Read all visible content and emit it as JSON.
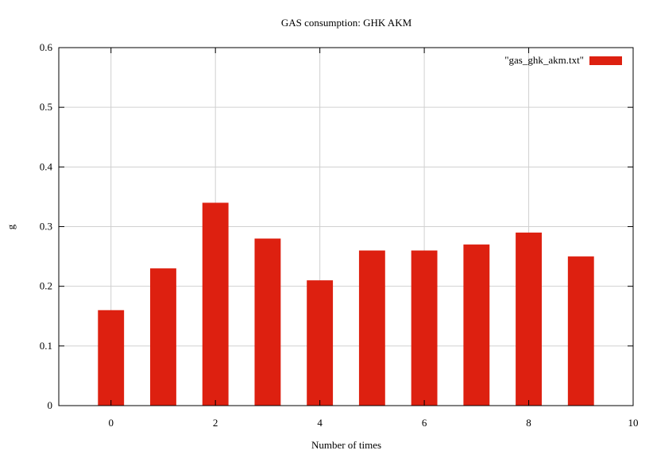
{
  "chart_data": {
    "type": "bar",
    "title": "GAS consumption: GHK AKM",
    "xlabel": "Number of times",
    "ylabel": "g",
    "x": [
      0,
      1,
      2,
      3,
      4,
      5,
      6,
      7,
      8,
      9
    ],
    "values": [
      0.16,
      0.23,
      0.34,
      0.28,
      0.21,
      0.26,
      0.26,
      0.27,
      0.29,
      0.25
    ],
    "series": [
      {
        "name": "\"gas_ghk_akm.txt\"",
        "color": "#dd2010",
        "values": [
          0.16,
          0.23,
          0.34,
          0.28,
          0.21,
          0.26,
          0.26,
          0.27,
          0.29,
          0.25
        ]
      }
    ],
    "xlim": [
      -1,
      10
    ],
    "ylim": [
      0,
      0.6
    ],
    "xticks": [
      "0",
      "2",
      "4",
      "6",
      "8",
      "10"
    ],
    "yticks": [
      "0",
      "0.1",
      "0.2",
      "0.3",
      "0.4",
      "0.5",
      "0.6"
    ],
    "grid": true,
    "legend_position": "top-right"
  }
}
